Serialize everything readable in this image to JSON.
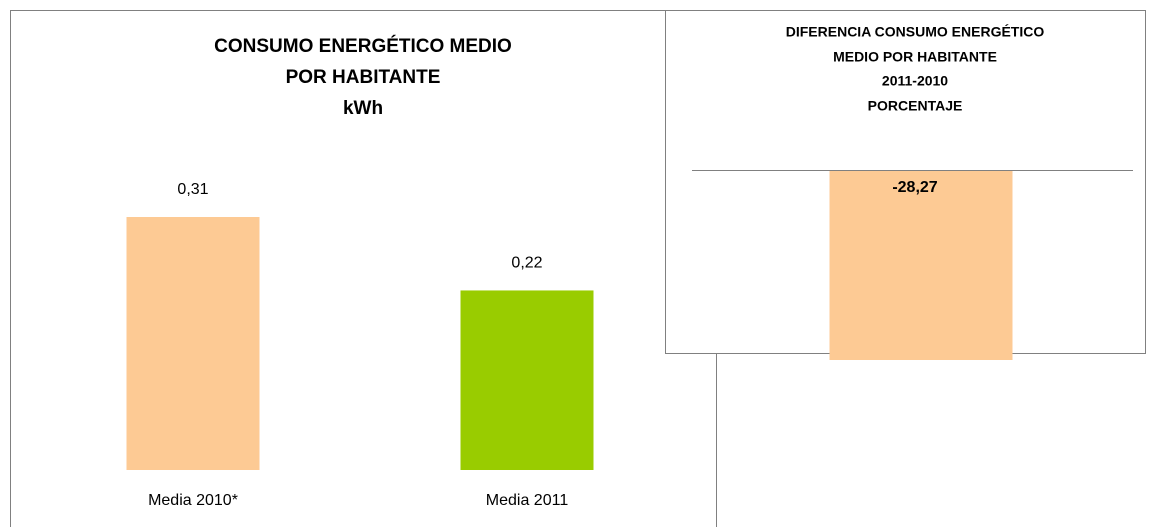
{
  "chart_data": [
    {
      "type": "bar",
      "title": [
        "CONSUMO ENERGÉTICO MEDIO",
        "POR HABITANTE",
        "kWh"
      ],
      "categories": [
        "Media 2010*",
        "Media 2011"
      ],
      "values": [
        0.31,
        0.22
      ],
      "value_labels": [
        "0,31",
        "0,22"
      ],
      "colors": [
        "#fdca94",
        "#99cc00"
      ]
    },
    {
      "type": "bar",
      "title": [
        "DIFERENCIA CONSUMO ENERGÉTICO",
        "MEDIO POR HABITANTE",
        "2011-2010",
        "PORCENTAJE"
      ],
      "categories": [
        null
      ],
      "values": [
        -28.27
      ],
      "value_labels": [
        "-28,27"
      ],
      "colors": [
        "#fdca94"
      ]
    }
  ]
}
